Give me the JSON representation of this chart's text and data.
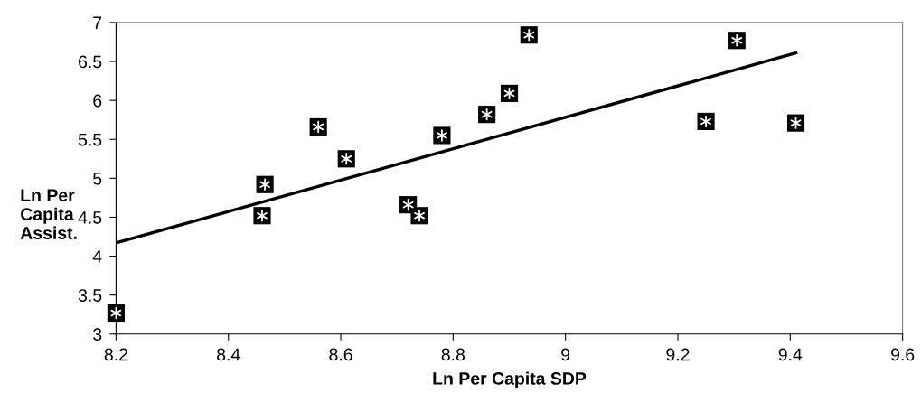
{
  "chart_data": {
    "type": "scatter",
    "xlabel": "Ln Per Capita SDP",
    "ylabel": "Ln Per\nCapita\nAssist.",
    "xlim": [
      8.2,
      9.6
    ],
    "xticks": [
      8.2,
      8.4,
      8.6,
      8.8,
      9,
      9.2,
      9.4,
      9.6
    ],
    "ylim": [
      3,
      7
    ],
    "yticks": [
      3,
      3.5,
      4,
      4.5,
      5,
      5.5,
      6,
      6.5,
      7
    ],
    "grid": false,
    "legend": false,
    "marker": "square",
    "series": [
      {
        "color": "#000000",
        "x": [
          8.2,
          8.46,
          8.465,
          8.56,
          8.61,
          8.72,
          8.74,
          8.78,
          8.86,
          8.9,
          8.935,
          9.25,
          9.305,
          9.41
        ],
        "values": [
          3.27,
          4.52,
          4.92,
          5.66,
          5.25,
          4.66,
          4.52,
          5.55,
          5.82,
          6.09,
          6.84,
          5.73,
          6.77,
          5.71
        ]
      },
      {
        "type": "line",
        "color": "#000000",
        "marker": "none",
        "line_style": "solid",
        "x": [
          8.2,
          9.41
        ],
        "values": [
          4.17,
          6.61
        ]
      }
    ]
  }
}
